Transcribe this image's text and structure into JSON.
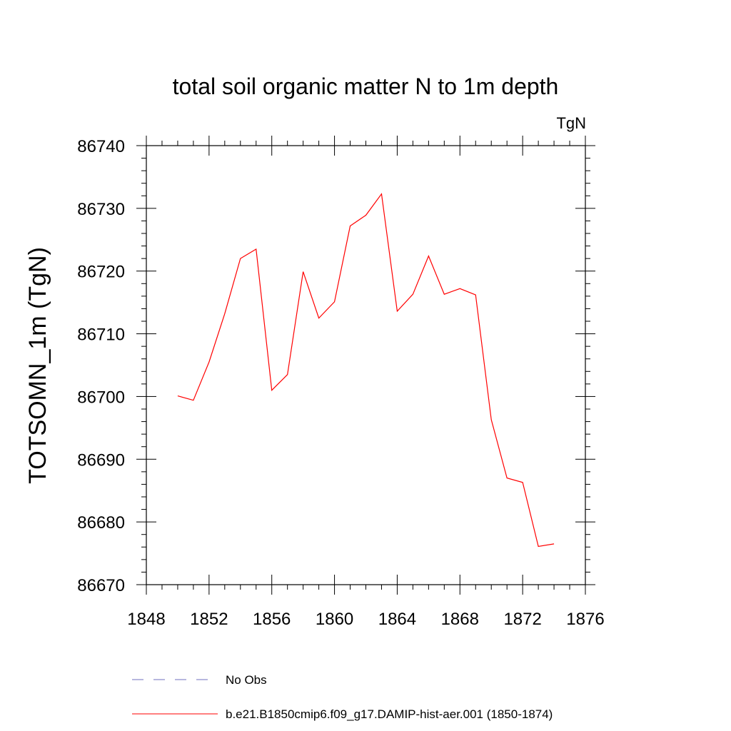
{
  "chart_data": {
    "type": "line",
    "title": "total soil organic matter N to 1m depth",
    "units": "TgN",
    "ylabel": "TOTSOMN_1m  (TgN)",
    "xlabel": "",
    "xlim": [
      1848,
      1876
    ],
    "ylim": [
      86670,
      86740
    ],
    "xticks": [
      1848,
      1852,
      1856,
      1860,
      1864,
      1868,
      1872,
      1876
    ],
    "yticks": [
      86670,
      86680,
      86690,
      86700,
      86710,
      86720,
      86730,
      86740
    ],
    "x_minor_step": 1,
    "y_minor_step": 2,
    "grid": false,
    "legend_placement": "bottom",
    "series": [
      {
        "name": "b.e21.B1850cmip6.f09_g17.DAMIP-hist-aer.001 (1850-1874)",
        "color": "#ff0000",
        "style": "solid",
        "x": [
          1850,
          1851,
          1852,
          1853,
          1854,
          1855,
          1856,
          1857,
          1858,
          1859,
          1860,
          1861,
          1862,
          1863,
          1864,
          1865,
          1866,
          1867,
          1868,
          1869,
          1870,
          1871,
          1872,
          1873,
          1874
        ],
        "y": [
          86700.1,
          86699.4,
          86705.5,
          86713.2,
          86722.0,
          86723.5,
          86701.0,
          86703.5,
          86719.9,
          86712.5,
          86715.1,
          86727.2,
          86728.9,
          86732.3,
          86713.6,
          86716.3,
          86722.4,
          86716.3,
          86717.2,
          86716.2,
          86696.3,
          86687.0,
          86686.3,
          86676.1,
          86676.5
        ]
      }
    ],
    "legend": [
      {
        "label": "No Obs",
        "color": "#6f6fbf",
        "style": "dashed"
      },
      {
        "label": "b.e21.B1850cmip6.f09_g17.DAMIP-hist-aer.001 (1850-1874)",
        "color": "#ff0000",
        "style": "solid"
      }
    ]
  }
}
